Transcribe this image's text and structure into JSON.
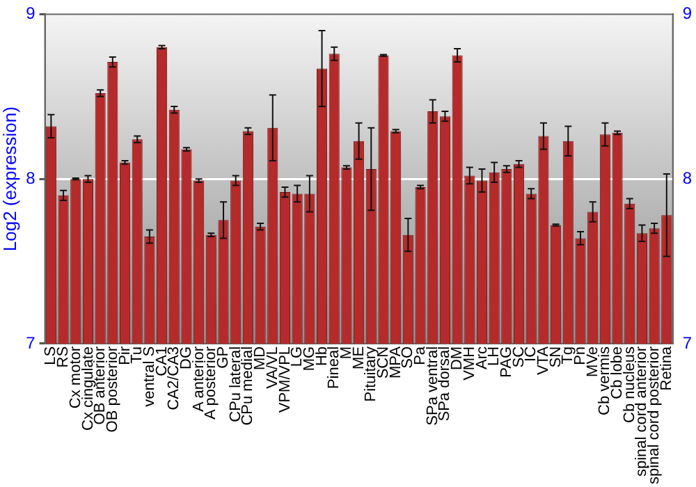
{
  "chart_data": {
    "type": "bar",
    "ylabel": "Log2 (expression)",
    "categories": [
      "LS",
      "RS",
      "Cx motor",
      "Cx cingulate",
      "OB anterior",
      "OB posterior",
      "Pir",
      "Tu",
      "ventral S",
      "CA1",
      "CA2/CA3",
      "DG",
      "A anterior",
      "A posterior",
      "GP",
      "CPu lateral",
      "CPu medial",
      "MD",
      "VA/VL",
      "VPM/VPL",
      "LG",
      "MG",
      "Hb",
      "Pineal",
      "M",
      "ME",
      "Pituitary",
      "SCN",
      "MPA",
      "SO",
      "Pa",
      "SPa ventral",
      "SPa dorsal",
      "DM",
      "VMH",
      "Arc",
      "LH",
      "PAG",
      "SC",
      "IC",
      "VTA",
      "SN",
      "Tg",
      "Pn",
      "MVe",
      "Cb vermis",
      "Cb lobe",
      "Cb nucleus",
      "spinal cord anterior",
      "spinal cord posterior",
      "Retina"
    ],
    "series": [
      {
        "color": "#b52a2a",
        "values": [
          8.32,
          7.9,
          8.0,
          8.0,
          8.52,
          8.71,
          8.1,
          8.24,
          7.65,
          8.8,
          8.42,
          8.18,
          7.99,
          7.66,
          7.75,
          7.99,
          8.29,
          7.71,
          8.31,
          7.92,
          7.91,
          7.91,
          8.67,
          8.76,
          8.07,
          8.23,
          8.06,
          8.75,
          8.29,
          7.66,
          7.95,
          8.41,
          8.38,
          8.75,
          8.02,
          7.99,
          8.04,
          8.06,
          8.09,
          7.91,
          8.26,
          7.72,
          8.23,
          7.64,
          7.8,
          8.27,
          8.28,
          7.85,
          7.67,
          7.7,
          7.78
        ],
        "errors": [
          0.07,
          0.03,
          0.005,
          0.02,
          0.02,
          0.03,
          0.01,
          0.02,
          0.04,
          0.01,
          0.02,
          0.01,
          0.01,
          0.01,
          0.11,
          0.03,
          0.02,
          0.02,
          0.2,
          0.03,
          0.05,
          0.11,
          0.23,
          0.04,
          0.01,
          0.11,
          0.25,
          0.005,
          0.01,
          0.1,
          0.01,
          0.07,
          0.03,
          0.04,
          0.05,
          0.07,
          0.06,
          0.02,
          0.02,
          0.03,
          0.08,
          0.005,
          0.09,
          0.04,
          0.06,
          0.07,
          0.01,
          0.03,
          0.05,
          0.03,
          0.25
        ]
      }
    ],
    "ylim": [
      7,
      9
    ],
    "yticks": [
      7,
      8,
      9
    ],
    "y2lim": [
      7,
      9
    ],
    "y2ticks": [
      7,
      8,
      9
    ],
    "grid": "y",
    "legend": false
  }
}
